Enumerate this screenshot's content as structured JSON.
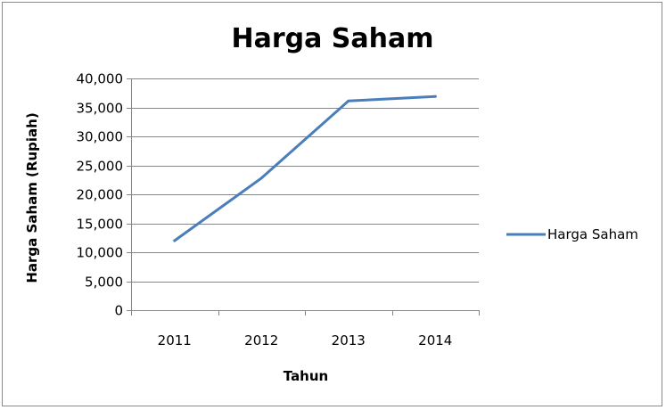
{
  "chart_data": {
    "type": "line",
    "title": "Harga Saham",
    "xlabel": "Tahun",
    "ylabel": "Harga Saham (Rupiah)",
    "categories": [
      "2011",
      "2012",
      "2013",
      "2014"
    ],
    "series": [
      {
        "name": "Harga Saham",
        "values": [
          12000,
          22800,
          36100,
          36900
        ],
        "color": "#4a7ebb"
      }
    ],
    "ylim": [
      0,
      40000
    ],
    "yticks": [
      "0",
      "5,000",
      "10,000",
      "15,000",
      "20,000",
      "25,000",
      "30,000",
      "35,000",
      "40,000"
    ],
    "ytick_values": [
      0,
      5000,
      10000,
      15000,
      20000,
      25000,
      30000,
      35000,
      40000
    ],
    "grid": true,
    "legend_position": "right",
    "gridline_color": "#868686"
  }
}
